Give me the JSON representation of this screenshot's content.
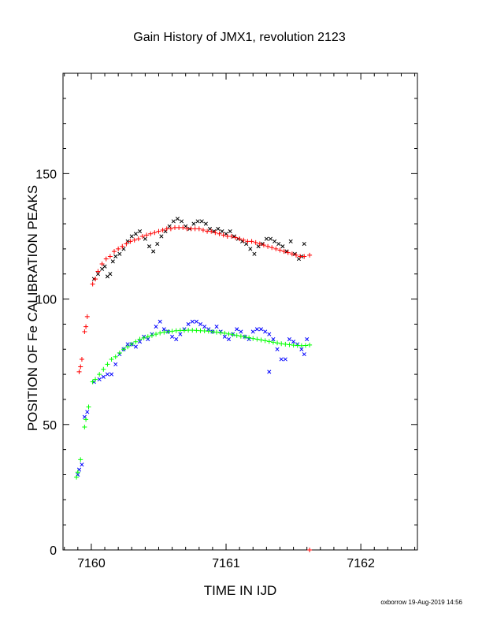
{
  "chart_data": {
    "type": "scatter",
    "title": "Gain History of JMX1, revolution 2123",
    "xlabel": "TIME IN IJD",
    "ylabel": "POSITION OF Fe CALIBRATION PEAKS",
    "xlim": [
      7159.79,
      7162.42
    ],
    "ylim": [
      0,
      190
    ],
    "x_ticks": [
      "7160",
      "7161",
      "7162"
    ],
    "y_ticks": [
      "0",
      "50",
      "100",
      "150"
    ],
    "footer": "oxborrow 19-Aug-2019 14:56",
    "series": [
      {
        "role": "upper peak measurements",
        "marker": "x",
        "color": "#000000",
        "points": [
          [
            7160.02,
            108
          ],
          [
            7160.05,
            110
          ],
          [
            7160.08,
            112
          ],
          [
            7160.1,
            113
          ],
          [
            7160.12,
            109
          ],
          [
            7160.14,
            110
          ],
          [
            7160.16,
            115
          ],
          [
            7160.18,
            117
          ],
          [
            7160.21,
            118
          ],
          [
            7160.24,
            120
          ],
          [
            7160.27,
            123
          ],
          [
            7160.3,
            125
          ],
          [
            7160.33,
            126
          ],
          [
            7160.36,
            127
          ],
          [
            7160.4,
            124
          ],
          [
            7160.43,
            121
          ],
          [
            7160.46,
            119
          ],
          [
            7160.49,
            122
          ],
          [
            7160.52,
            125
          ],
          [
            7160.55,
            127
          ],
          [
            7160.58,
            129
          ],
          [
            7160.61,
            131
          ],
          [
            7160.64,
            132
          ],
          [
            7160.67,
            131
          ],
          [
            7160.7,
            129
          ],
          [
            7160.73,
            128
          ],
          [
            7160.76,
            130
          ],
          [
            7160.79,
            131
          ],
          [
            7160.82,
            131
          ],
          [
            7160.85,
            130
          ],
          [
            7160.88,
            128
          ],
          [
            7160.91,
            127
          ],
          [
            7160.94,
            128
          ],
          [
            7160.97,
            127
          ],
          [
            7161.0,
            126
          ],
          [
            7161.03,
            127
          ],
          [
            7161.06,
            125
          ],
          [
            7161.09,
            124
          ],
          [
            7161.12,
            123
          ],
          [
            7161.15,
            122
          ],
          [
            7161.18,
            120
          ],
          [
            7161.21,
            118
          ],
          [
            7161.24,
            121
          ],
          [
            7161.27,
            122
          ],
          [
            7161.3,
            124
          ],
          [
            7161.33,
            124
          ],
          [
            7161.36,
            123
          ],
          [
            7161.39,
            122
          ],
          [
            7161.42,
            121
          ],
          [
            7161.45,
            119
          ],
          [
            7161.48,
            123
          ],
          [
            7161.51,
            118
          ],
          [
            7161.54,
            116
          ],
          [
            7161.56,
            117
          ],
          [
            7161.58,
            122
          ]
        ]
      },
      {
        "role": "upper peak fit",
        "marker": "+",
        "color": "#ff0000",
        "points": [
          [
            7159.91,
            71
          ],
          [
            7159.92,
            73
          ],
          [
            7159.93,
            76
          ],
          [
            7159.95,
            87
          ],
          [
            7159.96,
            89
          ],
          [
            7159.97,
            93
          ],
          [
            7160.01,
            106
          ],
          [
            7160.03,
            108
          ],
          [
            7160.05,
            111
          ],
          [
            7160.08,
            114
          ],
          [
            7160.11,
            116
          ],
          [
            7160.14,
            117
          ],
          [
            7160.17,
            119
          ],
          [
            7160.2,
            120
          ],
          [
            7160.23,
            121
          ],
          [
            7160.26,
            122
          ],
          [
            7160.29,
            123
          ],
          [
            7160.32,
            123.5
          ],
          [
            7160.35,
            124
          ],
          [
            7160.38,
            125
          ],
          [
            7160.41,
            125.5
          ],
          [
            7160.44,
            126
          ],
          [
            7160.47,
            126.5
          ],
          [
            7160.5,
            127
          ],
          [
            7160.53,
            127.5
          ],
          [
            7160.56,
            128
          ],
          [
            7160.59,
            128
          ],
          [
            7160.62,
            128.5
          ],
          [
            7160.65,
            128.5
          ],
          [
            7160.68,
            128.5
          ],
          [
            7160.71,
            128
          ],
          [
            7160.74,
            128
          ],
          [
            7160.77,
            128
          ],
          [
            7160.8,
            128
          ],
          [
            7160.83,
            127.5
          ],
          [
            7160.86,
            127
          ],
          [
            7160.89,
            127
          ],
          [
            7160.92,
            126.5
          ],
          [
            7160.95,
            126
          ],
          [
            7160.98,
            125.5
          ],
          [
            7161.01,
            125
          ],
          [
            7161.04,
            125
          ],
          [
            7161.07,
            124.5
          ],
          [
            7161.1,
            124
          ],
          [
            7161.13,
            123.5
          ],
          [
            7161.16,
            123
          ],
          [
            7161.19,
            123
          ],
          [
            7161.22,
            122.5
          ],
          [
            7161.25,
            122
          ],
          [
            7161.28,
            121.5
          ],
          [
            7161.31,
            121
          ],
          [
            7161.34,
            120.5
          ],
          [
            7161.37,
            120
          ],
          [
            7161.4,
            119.5
          ],
          [
            7161.43,
            119
          ],
          [
            7161.46,
            118.5
          ],
          [
            7161.49,
            118
          ],
          [
            7161.52,
            117.5
          ],
          [
            7161.55,
            117
          ],
          [
            7161.58,
            117
          ],
          [
            7161.62,
            117.5
          ],
          [
            7161.62,
            0
          ]
        ]
      },
      {
        "role": "lower peak measurements",
        "marker": "x",
        "color": "#0000ff",
        "points": [
          [
            7159.9,
            30
          ],
          [
            7159.91,
            32
          ],
          [
            7159.93,
            34
          ],
          [
            7159.95,
            53
          ],
          [
            7159.97,
            55
          ],
          [
            7160.02,
            67
          ],
          [
            7160.06,
            68
          ],
          [
            7160.09,
            69
          ],
          [
            7160.12,
            70
          ],
          [
            7160.15,
            70
          ],
          [
            7160.18,
            74
          ],
          [
            7160.21,
            78
          ],
          [
            7160.24,
            80
          ],
          [
            7160.27,
            82
          ],
          [
            7160.3,
            82
          ],
          [
            7160.33,
            81
          ],
          [
            7160.36,
            83
          ],
          [
            7160.39,
            85
          ],
          [
            7160.42,
            84
          ],
          [
            7160.45,
            86
          ],
          [
            7160.48,
            89
          ],
          [
            7160.51,
            91
          ],
          [
            7160.54,
            88
          ],
          [
            7160.57,
            87
          ],
          [
            7160.6,
            85
          ],
          [
            7160.63,
            84
          ],
          [
            7160.66,
            86
          ],
          [
            7160.69,
            88
          ],
          [
            7160.72,
            90
          ],
          [
            7160.75,
            91
          ],
          [
            7160.78,
            91
          ],
          [
            7160.81,
            90
          ],
          [
            7160.84,
            89
          ],
          [
            7160.87,
            88
          ],
          [
            7160.9,
            87
          ],
          [
            7160.93,
            89
          ],
          [
            7160.96,
            87
          ],
          [
            7160.99,
            85
          ],
          [
            7161.02,
            84
          ],
          [
            7161.05,
            86
          ],
          [
            7161.08,
            88
          ],
          [
            7161.11,
            87
          ],
          [
            7161.14,
            85
          ],
          [
            7161.17,
            84
          ],
          [
            7161.2,
            87
          ],
          [
            7161.23,
            88
          ],
          [
            7161.26,
            88
          ],
          [
            7161.29,
            87
          ],
          [
            7161.32,
            86
          ],
          [
            7161.35,
            84
          ],
          [
            7161.38,
            80
          ],
          [
            7161.41,
            76
          ],
          [
            7161.44,
            76
          ],
          [
            7161.47,
            84
          ],
          [
            7161.5,
            83
          ],
          [
            7161.53,
            82
          ],
          [
            7161.56,
            80
          ],
          [
            7161.58,
            78
          ],
          [
            7161.6,
            84
          ],
          [
            7161.32,
            71
          ]
        ]
      },
      {
        "role": "lower peak fit",
        "marker": "+",
        "color": "#00ff00",
        "points": [
          [
            7159.89,
            29
          ],
          [
            7159.9,
            31
          ],
          [
            7159.92,
            36
          ],
          [
            7159.95,
            49
          ],
          [
            7159.96,
            52
          ],
          [
            7159.98,
            57
          ],
          [
            7160.01,
            67
          ],
          [
            7160.03,
            68
          ],
          [
            7160.06,
            70
          ],
          [
            7160.09,
            72
          ],
          [
            7160.12,
            74
          ],
          [
            7160.15,
            76
          ],
          [
            7160.18,
            77
          ],
          [
            7160.21,
            78.5
          ],
          [
            7160.24,
            80
          ],
          [
            7160.27,
            81
          ],
          [
            7160.3,
            82
          ],
          [
            7160.33,
            83
          ],
          [
            7160.36,
            84
          ],
          [
            7160.39,
            84.5
          ],
          [
            7160.42,
            85
          ],
          [
            7160.45,
            85.5
          ],
          [
            7160.48,
            86
          ],
          [
            7160.51,
            86.5
          ],
          [
            7160.54,
            86.8
          ],
          [
            7160.57,
            87
          ],
          [
            7160.6,
            87.2
          ],
          [
            7160.63,
            87.4
          ],
          [
            7160.66,
            87.5
          ],
          [
            7160.69,
            87.5
          ],
          [
            7160.72,
            87.6
          ],
          [
            7160.75,
            87.6
          ],
          [
            7160.78,
            87.5
          ],
          [
            7160.81,
            87.4
          ],
          [
            7160.84,
            87.3
          ],
          [
            7160.87,
            87.2
          ],
          [
            7160.9,
            87
          ],
          [
            7160.93,
            86.8
          ],
          [
            7160.96,
            86.6
          ],
          [
            7160.99,
            86.4
          ],
          [
            7161.02,
            86.1
          ],
          [
            7161.05,
            85.8
          ],
          [
            7161.08,
            85.5
          ],
          [
            7161.11,
            85.2
          ],
          [
            7161.14,
            84.9
          ],
          [
            7161.17,
            84.6
          ],
          [
            7161.2,
            84.3
          ],
          [
            7161.23,
            84
          ],
          [
            7161.26,
            83.7
          ],
          [
            7161.29,
            83.4
          ],
          [
            7161.32,
            83.1
          ],
          [
            7161.35,
            82.8
          ],
          [
            7161.38,
            82.5
          ],
          [
            7161.41,
            82.2
          ],
          [
            7161.44,
            82
          ],
          [
            7161.47,
            81.8
          ],
          [
            7161.5,
            81.6
          ],
          [
            7161.53,
            81.5
          ],
          [
            7161.56,
            81.4
          ],
          [
            7161.59,
            81.5
          ],
          [
            7161.62,
            81.7
          ]
        ]
      }
    ]
  }
}
